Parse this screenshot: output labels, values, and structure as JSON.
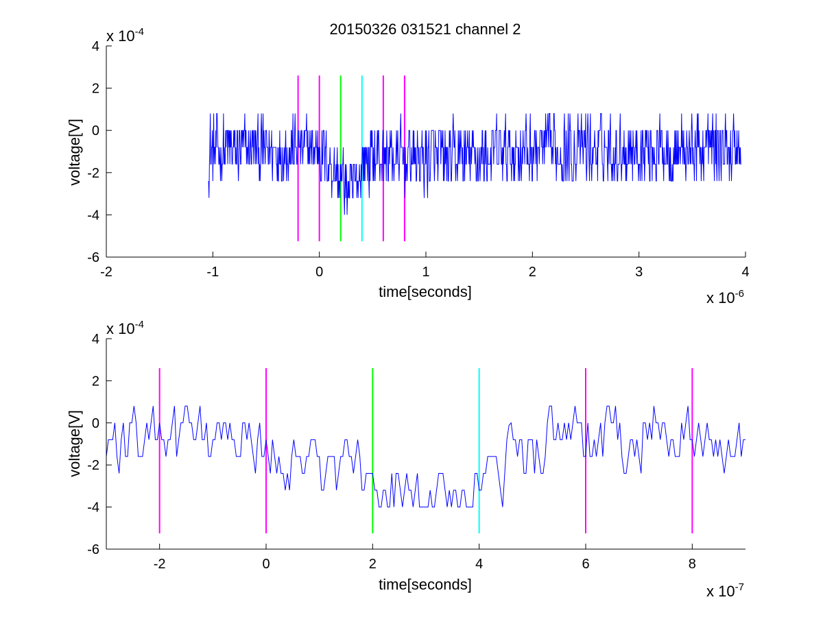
{
  "figure": {
    "title": "20150326 031521 channel 2"
  },
  "colors": {
    "trace": "#0000ff",
    "magenta": "#ff00ff",
    "green": "#00ff00",
    "cyan": "#00ffff",
    "axes": "#000000",
    "background": "#ffffff"
  },
  "chart_data": [
    {
      "type": "line",
      "xlabel": "time[seconds]",
      "ylabel": "voltage[V]",
      "xlim": [
        -2e-06,
        4e-06
      ],
      "ylim": [
        -0.0006,
        0.0004
      ],
      "x_ticks": [
        -2,
        -1,
        0,
        1,
        2,
        3,
        4
      ],
      "y_ticks": [
        -6,
        -4,
        -2,
        0,
        2,
        4
      ],
      "x_exponent": {
        "base": "x 10",
        "power": "-6"
      },
      "y_exponent": {
        "base": "x 10",
        "power": "-4"
      },
      "grid": false,
      "series": [
        {
          "color": "#0000ff",
          "x_start": -1.04e-06,
          "x_end": 3.96e-06,
          "sample_step": 4e-09,
          "level_step_volts": 8e-05,
          "envelope": [
            {
              "x": -1.04e-06,
              "y_min": -0.00032,
              "y_max": 0.00024,
              "y_mean": -0.0001
            },
            {
              "x": 0.0,
              "y_min": -0.00024,
              "y_max": 0.00016,
              "y_mean": -8e-05
            },
            {
              "x": 3e-07,
              "y_min": -0.00048,
              "y_max": 0.0,
              "y_mean": -0.0003
            },
            {
              "x": 4.5e-07,
              "y_min": -0.0004,
              "y_max": 8e-05,
              "y_mean": -0.00012
            },
            {
              "x": 1.2e-06,
              "y_min": -0.0004,
              "y_max": 8e-05,
              "y_mean": -0.00014
            },
            {
              "x": 2e-06,
              "y_min": -0.00032,
              "y_max": 0.00016,
              "y_mean": -9e-05
            },
            {
              "x": 3.96e-06,
              "y_min": -0.00032,
              "y_max": 0.00016,
              "y_mean": -8e-05
            }
          ]
        }
      ],
      "markers": [
        {
          "x": -2e-07,
          "color": "#ff00ff",
          "y_range": [
            -0.000525,
            0.00026
          ]
        },
        {
          "x": 0.0,
          "color": "#ff00ff",
          "y_range": [
            -0.000525,
            0.00026
          ]
        },
        {
          "x": 2e-07,
          "color": "#00ff00",
          "y_range": [
            -0.000525,
            0.00026
          ]
        },
        {
          "x": 4e-07,
          "color": "#00ffff",
          "y_range": [
            -0.000525,
            0.00026
          ]
        },
        {
          "x": 6e-07,
          "color": "#ff00ff",
          "y_range": [
            -0.000525,
            0.00026
          ]
        },
        {
          "x": 8e-07,
          "color": "#ff00ff",
          "y_range": [
            -0.000525,
            0.00026
          ]
        }
      ]
    },
    {
      "type": "line",
      "xlabel": "time[seconds]",
      "ylabel": "voltage[V]",
      "xlim": [
        -3e-07,
        9e-07
      ],
      "ylim": [
        -0.0006,
        0.0004
      ],
      "x_ticks": [
        -2,
        0,
        2,
        4,
        6,
        8
      ],
      "y_ticks": [
        -6,
        -4,
        -2,
        0,
        2,
        4
      ],
      "x_exponent": {
        "base": "x 10",
        "power": "-7"
      },
      "y_exponent": {
        "base": "x 10",
        "power": "-4"
      },
      "grid": false,
      "series": [
        {
          "color": "#0000ff",
          "x_start": -3e-07,
          "x_end": 9e-07,
          "sample_step": 4e-09,
          "level_step_volts": 8e-05,
          "envelope": [
            {
              "x": -3e-07,
              "y_min": -0.00032,
              "y_max": 8e-05,
              "y_mean": -0.0001
            },
            {
              "x": -1.8e-07,
              "y_min": -0.00024,
              "y_max": 0.00016,
              "y_mean": -6e-05
            },
            {
              "x": 1.4e-07,
              "y_min": -0.0004,
              "y_max": 0.0,
              "y_mean": -0.0002
            },
            {
              "x": 2.5e-07,
              "y_min": -0.00048,
              "y_max": -8e-05,
              "y_mean": -0.0003
            },
            {
              "x": 3.8e-07,
              "y_min": -0.00048,
              "y_max": -0.00024,
              "y_mean": -0.00033
            },
            {
              "x": 4.6e-07,
              "y_min": -0.00048,
              "y_max": 0.0,
              "y_mean": -0.0002
            },
            {
              "x": 5.2e-07,
              "y_min": -0.00032,
              "y_max": 8e-05,
              "y_mean": -8e-05
            },
            {
              "x": 9e-07,
              "y_min": -0.00032,
              "y_max": 0.00016,
              "y_mean": -7e-05
            }
          ]
        }
      ],
      "markers": [
        {
          "x": -2e-07,
          "color": "#ff00ff",
          "y_range": [
            -0.000525,
            0.00026
          ]
        },
        {
          "x": 0.0,
          "color": "#ff00ff",
          "y_range": [
            -0.000525,
            0.00026
          ]
        },
        {
          "x": 2e-07,
          "color": "#00ff00",
          "y_range": [
            -0.000525,
            0.00026
          ]
        },
        {
          "x": 4e-07,
          "color": "#00ffff",
          "y_range": [
            -0.000525,
            0.00026
          ]
        },
        {
          "x": 6e-07,
          "color": "#ff00ff",
          "y_range": [
            -0.000525,
            0.00026
          ]
        },
        {
          "x": 8e-07,
          "color": "#ff00ff",
          "y_range": [
            -0.000525,
            0.00026
          ]
        }
      ]
    }
  ]
}
